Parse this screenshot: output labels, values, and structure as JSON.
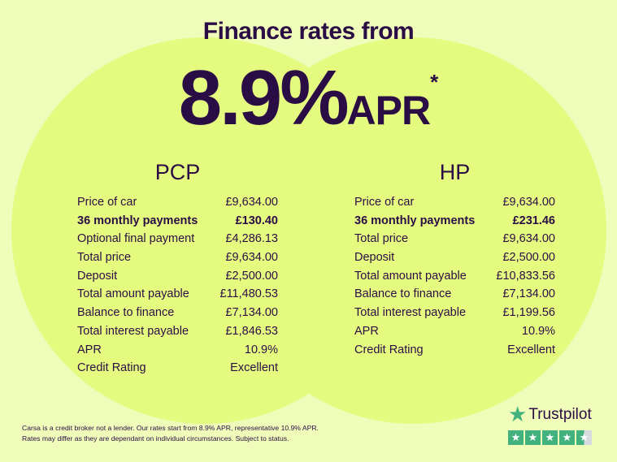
{
  "header": {
    "subtitle": "Finance rates from",
    "rate": "8.9%",
    "apr": "APR",
    "asterisk": "*"
  },
  "pcp": {
    "title": "PCP",
    "rows": [
      {
        "label": "Price of car",
        "value": "£9,634.00"
      },
      {
        "label": "36 monthly payments",
        "value": "£130.40",
        "bold": true
      },
      {
        "label": "Optional final payment",
        "value": "£4,286.13"
      },
      {
        "label": "Total price",
        "value": "£9,634.00"
      },
      {
        "label": "Deposit",
        "value": "£2,500.00"
      },
      {
        "label": "Total amount payable",
        "value": "£11,480.53"
      },
      {
        "label": "Balance to finance",
        "value": "£7,134.00"
      },
      {
        "label": "Total interest payable",
        "value": "£1,846.53"
      },
      {
        "label": "APR",
        "value": "10.9%"
      },
      {
        "label": "Credit Rating",
        "value": "Excellent"
      }
    ]
  },
  "hp": {
    "title": "HP",
    "rows": [
      {
        "label": "Price of car",
        "value": "£9,634.00"
      },
      {
        "label": "36 monthly payments",
        "value": "£231.46",
        "bold": true
      },
      {
        "label": "Total price",
        "value": "£9,634.00"
      },
      {
        "label": "Deposit",
        "value": "£2,500.00"
      },
      {
        "label": "Total amount payable",
        "value": "£10,833.56"
      },
      {
        "label": "Balance to finance",
        "value": "£7,134.00"
      },
      {
        "label": "Total interest payable",
        "value": "£1,199.56"
      },
      {
        "label": "APR",
        "value": "10.9%"
      },
      {
        "label": "Credit Rating",
        "value": "Excellent"
      }
    ]
  },
  "disclaimer": {
    "line1": "Carsa is a credit broker not a lender. Our rates start from 8.9% APR, representative 10.9% APR.",
    "line2": "Rates may differ as they are dependant on individual circumstances. Subject to status."
  },
  "trustpilot": {
    "name": "Trustpilot",
    "rating_stars": 4.5,
    "max_stars": 5,
    "color": "#41b27e"
  },
  "colors": {
    "background": "#effcba",
    "circle": "#e5fb80",
    "text": "#2b0d45"
  }
}
